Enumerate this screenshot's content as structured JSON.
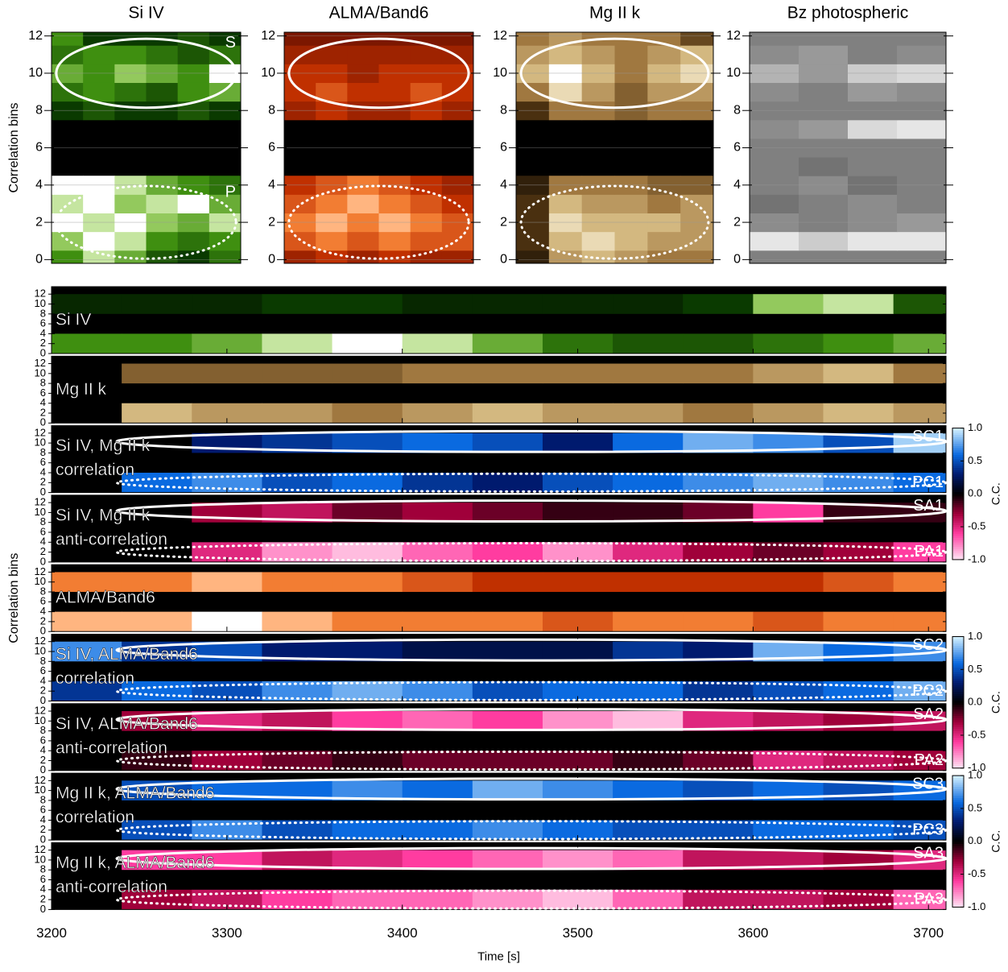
{
  "chart_data": [
    {
      "type": "heatmap",
      "title": "Si IV",
      "colormap": "green",
      "y_label": "Correlation bins",
      "annotations": [
        "S",
        "P"
      ],
      "ellipses": true,
      "ylim": [
        -0.2,
        12.2
      ],
      "yticks": [
        0,
        2,
        4,
        6,
        8,
        10,
        12
      ],
      "bins": [
        0,
        1,
        2,
        3,
        4,
        8,
        9,
        10,
        11,
        12
      ],
      "values": [
        [
          0.6,
          0.9,
          0.7,
          0.4,
          0.3,
          0.5
        ],
        [
          0.8,
          1,
          0.9,
          0.6,
          0.5,
          0.6
        ],
        [
          1,
          0.9,
          1,
          0.8,
          0.7,
          0.9
        ],
        [
          0.9,
          1,
          0.8,
          0.9,
          1,
          0.7
        ],
        [
          1,
          1,
          0.9,
          0.7,
          0.6,
          0.5
        ],
        [
          0.3,
          0.4,
          0.3,
          0.3,
          0.4,
          0.3
        ],
        [
          0.5,
          0.6,
          0.5,
          0.4,
          0.6,
          0.7
        ],
        [
          0.7,
          0.6,
          0.8,
          0.7,
          0.6,
          1
        ],
        [
          0.5,
          0.6,
          0.6,
          0.5,
          0.4,
          0.5
        ],
        [
          0.6,
          0.3,
          0.3,
          0.3,
          0.4,
          0.3
        ]
      ]
    },
    {
      "type": "heatmap",
      "title": "ALMA/Band6",
      "colormap": "red",
      "ellipses": true,
      "ylim": [
        -0.2,
        12.2
      ],
      "yticks": [
        0,
        2,
        4,
        6,
        8,
        10,
        12
      ],
      "bins": [
        0,
        1,
        2,
        3,
        4,
        8,
        9,
        10,
        11,
        12
      ],
      "values": [
        [
          0.5,
          0.6,
          0.5,
          0.6,
          0.5,
          0.5
        ],
        [
          0.7,
          0.8,
          0.7,
          0.8,
          0.7,
          0.7
        ],
        [
          0.8,
          0.9,
          0.8,
          0.9,
          0.8,
          0.7
        ],
        [
          0.7,
          0.8,
          0.9,
          0.8,
          0.7,
          0.6
        ],
        [
          0.6,
          0.7,
          0.8,
          0.7,
          0.6,
          0.5
        ],
        [
          0.5,
          0.6,
          0.5,
          0.5,
          0.6,
          0.5
        ],
        [
          0.6,
          0.7,
          0.6,
          0.6,
          0.7,
          0.6
        ],
        [
          0.6,
          0.6,
          0.5,
          0.6,
          0.6,
          0.6
        ],
        [
          0.5,
          0.5,
          0.5,
          0.5,
          0.5,
          0.5
        ],
        [
          0.4,
          0.4,
          0.4,
          0.4,
          0.4,
          0.4
        ]
      ]
    },
    {
      "type": "heatmap",
      "title": "Mg II k",
      "colormap": "gold",
      "ellipses": true,
      "ylim": [
        -0.2,
        12.2
      ],
      "yticks": [
        0,
        2,
        4,
        6,
        8,
        10,
        12
      ],
      "bins": [
        0,
        1,
        2,
        3,
        4,
        8,
        9,
        10,
        11,
        12
      ],
      "values": [
        [
          0.2,
          0.7,
          0.8,
          0.7,
          0.6,
          0.6
        ],
        [
          0.3,
          0.8,
          0.9,
          0.8,
          0.7,
          0.7
        ],
        [
          0.3,
          0.9,
          0.8,
          0.8,
          0.8,
          0.7
        ],
        [
          0.3,
          0.8,
          0.7,
          0.7,
          0.6,
          0.7
        ],
        [
          0.2,
          0.6,
          0.6,
          0.6,
          0.5,
          0.5
        ],
        [
          0.3,
          0.6,
          0.6,
          0.5,
          0.6,
          0.6
        ],
        [
          0.6,
          0.9,
          0.7,
          0.5,
          0.7,
          0.7
        ],
        [
          0.8,
          1,
          0.8,
          0.6,
          0.8,
          0.9
        ],
        [
          0.7,
          0.8,
          0.7,
          0.6,
          0.7,
          0.8
        ],
        [
          0.6,
          0.7,
          0.6,
          0.6,
          0.6,
          0.4
        ]
      ]
    },
    {
      "type": "heatmap",
      "title": "Bz photospheric",
      "colormap": "gray",
      "ylim": [
        -0.2,
        12.2
      ],
      "yticks": [
        0,
        2,
        4,
        6,
        8,
        10,
        12
      ],
      "bins": [
        0,
        1,
        2,
        3,
        4,
        5,
        6,
        7,
        8,
        9,
        10,
        11,
        12
      ],
      "values": [
        [
          0.5,
          0.5,
          0.5,
          0.5
        ],
        [
          0.9,
          0.8,
          0.9,
          0.9
        ],
        [
          0.55,
          0.5,
          0.55,
          0.6
        ],
        [
          0.45,
          0.5,
          0.55,
          0.5
        ],
        [
          0.5,
          0.55,
          0.45,
          0.5
        ],
        [
          0.5,
          0.45,
          0.5,
          0.5
        ],
        [
          0.5,
          0.5,
          0.5,
          0.5
        ],
        [
          0.55,
          0.6,
          0.85,
          0.9
        ],
        [
          0.5,
          0.5,
          0.5,
          0.5
        ],
        [
          0.55,
          0.5,
          0.6,
          0.55
        ],
        [
          0.7,
          0.6,
          0.8,
          0.85
        ],
        [
          0.55,
          0.6,
          0.5,
          0.55
        ],
        [
          0.5,
          0.5,
          0.5,
          0.5
        ]
      ]
    },
    {
      "type": "strip",
      "colormap": "green",
      "label_lines": [
        "Si IV"
      ],
      "xlim": [
        3200,
        3710
      ],
      "time_edges": [
        3200,
        3240,
        3280,
        3320,
        3360,
        3400,
        3440,
        3480,
        3520,
        3560,
        3600,
        3640,
        3680,
        3710
      ],
      "ylim": [
        0,
        13.5
      ],
      "yticks": [
        0,
        2,
        4,
        6,
        8,
        10,
        12
      ],
      "row_ranges": [
        [
          0,
          4
        ],
        [
          8,
          12
        ]
      ],
      "values": [
        [
          0.6,
          0.6,
          0.7,
          0.9,
          1,
          0.9,
          0.7,
          0.5,
          0.4,
          0.4,
          0.5,
          0.6,
          0.7
        ],
        [
          0.2,
          0.2,
          0.2,
          0.3,
          0.3,
          0.2,
          0.2,
          0.2,
          0.2,
          0.3,
          0.8,
          0.9,
          0.4
        ]
      ]
    },
    {
      "type": "strip",
      "colormap": "gold",
      "label_lines": [
        "Mg II k"
      ],
      "ylim": [
        0,
        13.5
      ],
      "yticks": [
        0,
        2,
        4,
        6,
        8,
        10,
        12
      ],
      "row_ranges": [
        [
          0,
          4
        ],
        [
          8,
          12
        ]
      ],
      "values": [
        [
          0,
          0.8,
          0.7,
          0.7,
          0.6,
          0.7,
          0.8,
          0.7,
          0.7,
          0.6,
          0.7,
          0.8,
          0.7
        ],
        [
          0,
          0.5,
          0.5,
          0.5,
          0.5,
          0.6,
          0.6,
          0.6,
          0.6,
          0.6,
          0.7,
          0.8,
          0.6
        ]
      ]
    },
    {
      "type": "strip",
      "colormap": "cc",
      "label_lines": [
        "Si IV, Mg II k",
        "correlation"
      ],
      "annotations": [
        "SC1",
        "PC1"
      ],
      "ellipses": true,
      "ylim": [
        0,
        13.5
      ],
      "yticks": [
        0,
        2,
        4,
        6,
        8,
        10,
        12
      ],
      "row_ranges": [
        [
          0,
          4
        ],
        [
          8,
          12
        ]
      ],
      "values": [
        [
          0,
          0.6,
          0.7,
          0.5,
          0.6,
          0.4,
          0.3,
          0.5,
          0.6,
          0.7,
          0.8,
          0.7,
          0.6
        ],
        [
          0,
          0,
          0.3,
          0.4,
          0.5,
          0.6,
          0.5,
          0.3,
          0.6,
          0.8,
          0.7,
          0.5,
          0.9
        ]
      ]
    },
    {
      "type": "strip",
      "colormap": "cc",
      "label_lines": [
        "Si IV, Mg II k",
        "anti-correlation"
      ],
      "annotations": [
        "SA1",
        "PA1"
      ],
      "ellipses": true,
      "ylim": [
        0,
        13.5
      ],
      "yticks": [
        0,
        2,
        4,
        6,
        8,
        10,
        12
      ],
      "row_ranges": [
        [
          0,
          4
        ],
        [
          8,
          12
        ]
      ],
      "values": [
        [
          0,
          0,
          -0.5,
          -0.8,
          -0.9,
          -0.7,
          -0.6,
          -0.8,
          -0.5,
          -0.3,
          -0.2,
          -0.3,
          -0.6
        ],
        [
          0,
          0,
          -0.3,
          -0.4,
          -0.2,
          -0.3,
          -0.2,
          -0.1,
          -0.1,
          -0.2,
          -0.6,
          -0.1,
          -0.1
        ]
      ],
      "colorbar": {
        "label": "C.C.",
        "lim": [
          -1,
          1
        ],
        "ticks": [
          {
            "value": 1,
            "label": "1.0"
          },
          0.5,
          {
            "value": 0,
            "label": "0.0"
          },
          -0.5,
          {
            "value": -1,
            "label": "-1.0"
          }
        ]
      }
    },
    {
      "type": "strip",
      "colormap": "red",
      "label_lines": [
        "ALMA/Band6"
      ],
      "y_label": "Correlation bins",
      "ylim": [
        0,
        13.5
      ],
      "yticks": [
        0,
        2,
        4,
        6,
        8,
        10,
        12
      ],
      "row_ranges": [
        [
          0,
          4
        ],
        [
          8,
          12
        ]
      ],
      "values": [
        [
          0.9,
          0.9,
          1,
          0.9,
          0.8,
          0.8,
          0.8,
          0.7,
          0.8,
          0.8,
          0.7,
          0.8,
          0.8
        ],
        [
          0.8,
          0.8,
          0.9,
          0.8,
          0.8,
          0.7,
          0.6,
          0.6,
          0.6,
          0.6,
          0.6,
          0.7,
          0.8
        ]
      ]
    },
    {
      "type": "strip",
      "colormap": "cc",
      "label_lines": [
        "Si IV, ALMA/Band6",
        "correlation"
      ],
      "annotations": [
        "SC2",
        "PC2"
      ],
      "ellipses": true,
      "ylim": [
        0,
        13.5
      ],
      "yticks": [
        0,
        2,
        4,
        6,
        8,
        10,
        12
      ],
      "row_ranges": [
        [
          0,
          4
        ],
        [
          8,
          12
        ]
      ],
      "values": [
        [
          0.4,
          0.6,
          0.5,
          0.7,
          0.8,
          0.7,
          0.5,
          0.6,
          0.6,
          0.4,
          0.5,
          0.6,
          0.8
        ],
        [
          0.7,
          0.4,
          0.5,
          0.3,
          0.3,
          0.2,
          0.2,
          0.2,
          0.4,
          0.3,
          0.8,
          0.6,
          0.7
        ]
      ]
    },
    {
      "type": "strip",
      "colormap": "cc",
      "label_lines": [
        "Si IV, ALMA/Band6",
        "anti-correlation"
      ],
      "annotations": [
        "SA2",
        "PA2"
      ],
      "ellipses": true,
      "ylim": [
        0,
        13.5
      ],
      "yticks": [
        0,
        2,
        4,
        6,
        8,
        10,
        12
      ],
      "row_ranges": [
        [
          0,
          4
        ],
        [
          8,
          12
        ]
      ],
      "values": [
        [
          0,
          -0.1,
          -0.3,
          -0.2,
          -0.1,
          -0.2,
          -0.2,
          -0.2,
          -0.1,
          -0.2,
          -0.5,
          -0.4,
          -0.3
        ],
        [
          0,
          -0.3,
          -0.5,
          -0.4,
          -0.6,
          -0.7,
          -0.6,
          -0.8,
          -0.9,
          -0.5,
          -0.4,
          -0.3,
          -0.4
        ]
      ],
      "colorbar": {
        "label": "C.C.",
        "lim": [
          -1,
          1
        ],
        "ticks": [
          {
            "value": 1,
            "label": "1.0"
          },
          0.5,
          {
            "value": 0,
            "label": "0.0"
          },
          -0.5,
          {
            "value": -1,
            "label": "-1.0"
          }
        ]
      }
    },
    {
      "type": "strip",
      "colormap": "cc",
      "label_lines": [
        "Mg II k, ALMA/Band6",
        "correlation"
      ],
      "annotations": [
        "SC3",
        "PC3"
      ],
      "ellipses": true,
      "ylim": [
        0,
        13.5
      ],
      "yticks": [
        0,
        2,
        4,
        6,
        8,
        10,
        12
      ],
      "row_ranges": [
        [
          0,
          4
        ],
        [
          8,
          12
        ]
      ],
      "values": [
        [
          0,
          0.5,
          0.7,
          0.5,
          0.6,
          0.6,
          0.7,
          0.6,
          0.5,
          0.5,
          0.6,
          0.6,
          0.5
        ],
        [
          0,
          0.5,
          0.6,
          0.6,
          0.7,
          0.6,
          0.8,
          0.7,
          0.6,
          0.5,
          0.6,
          0.5,
          0.6
        ]
      ]
    },
    {
      "type": "strip",
      "colormap": "cc",
      "label_lines": [
        "Mg II k, ALMA/Band6",
        "anti-correlation"
      ],
      "annotations": [
        "SA3",
        "PA3"
      ],
      "ellipses": true,
      "ylim": [
        0,
        13.5
      ],
      "yticks": [
        0,
        2,
        4,
        6,
        8,
        10,
        12
      ],
      "row_ranges": [
        [
          0,
          4
        ],
        [
          8,
          12
        ]
      ],
      "values": [
        [
          0,
          -0.3,
          -0.4,
          -0.6,
          -0.7,
          -0.7,
          -0.8,
          -0.9,
          -0.7,
          -0.4,
          -0.4,
          -0.3,
          -0.7
        ],
        [
          0,
          -0.6,
          -0.6,
          -0.4,
          -0.5,
          -0.6,
          -0.7,
          -0.8,
          -0.7,
          -0.4,
          -0.4,
          -0.3,
          -0.5
        ]
      ],
      "colorbar": {
        "label": "C.C.",
        "lim": [
          -1,
          1
        ],
        "ticks": [
          {
            "value": 1,
            "label": "1.0"
          },
          0.5,
          {
            "value": 0,
            "label": "0.0"
          },
          -0.5,
          {
            "value": -1,
            "label": "-1.0"
          }
        ]
      },
      "xticks": [
        3200,
        3300,
        3400,
        3500,
        3600,
        3700
      ],
      "x_label": "Time [s]"
    }
  ]
}
